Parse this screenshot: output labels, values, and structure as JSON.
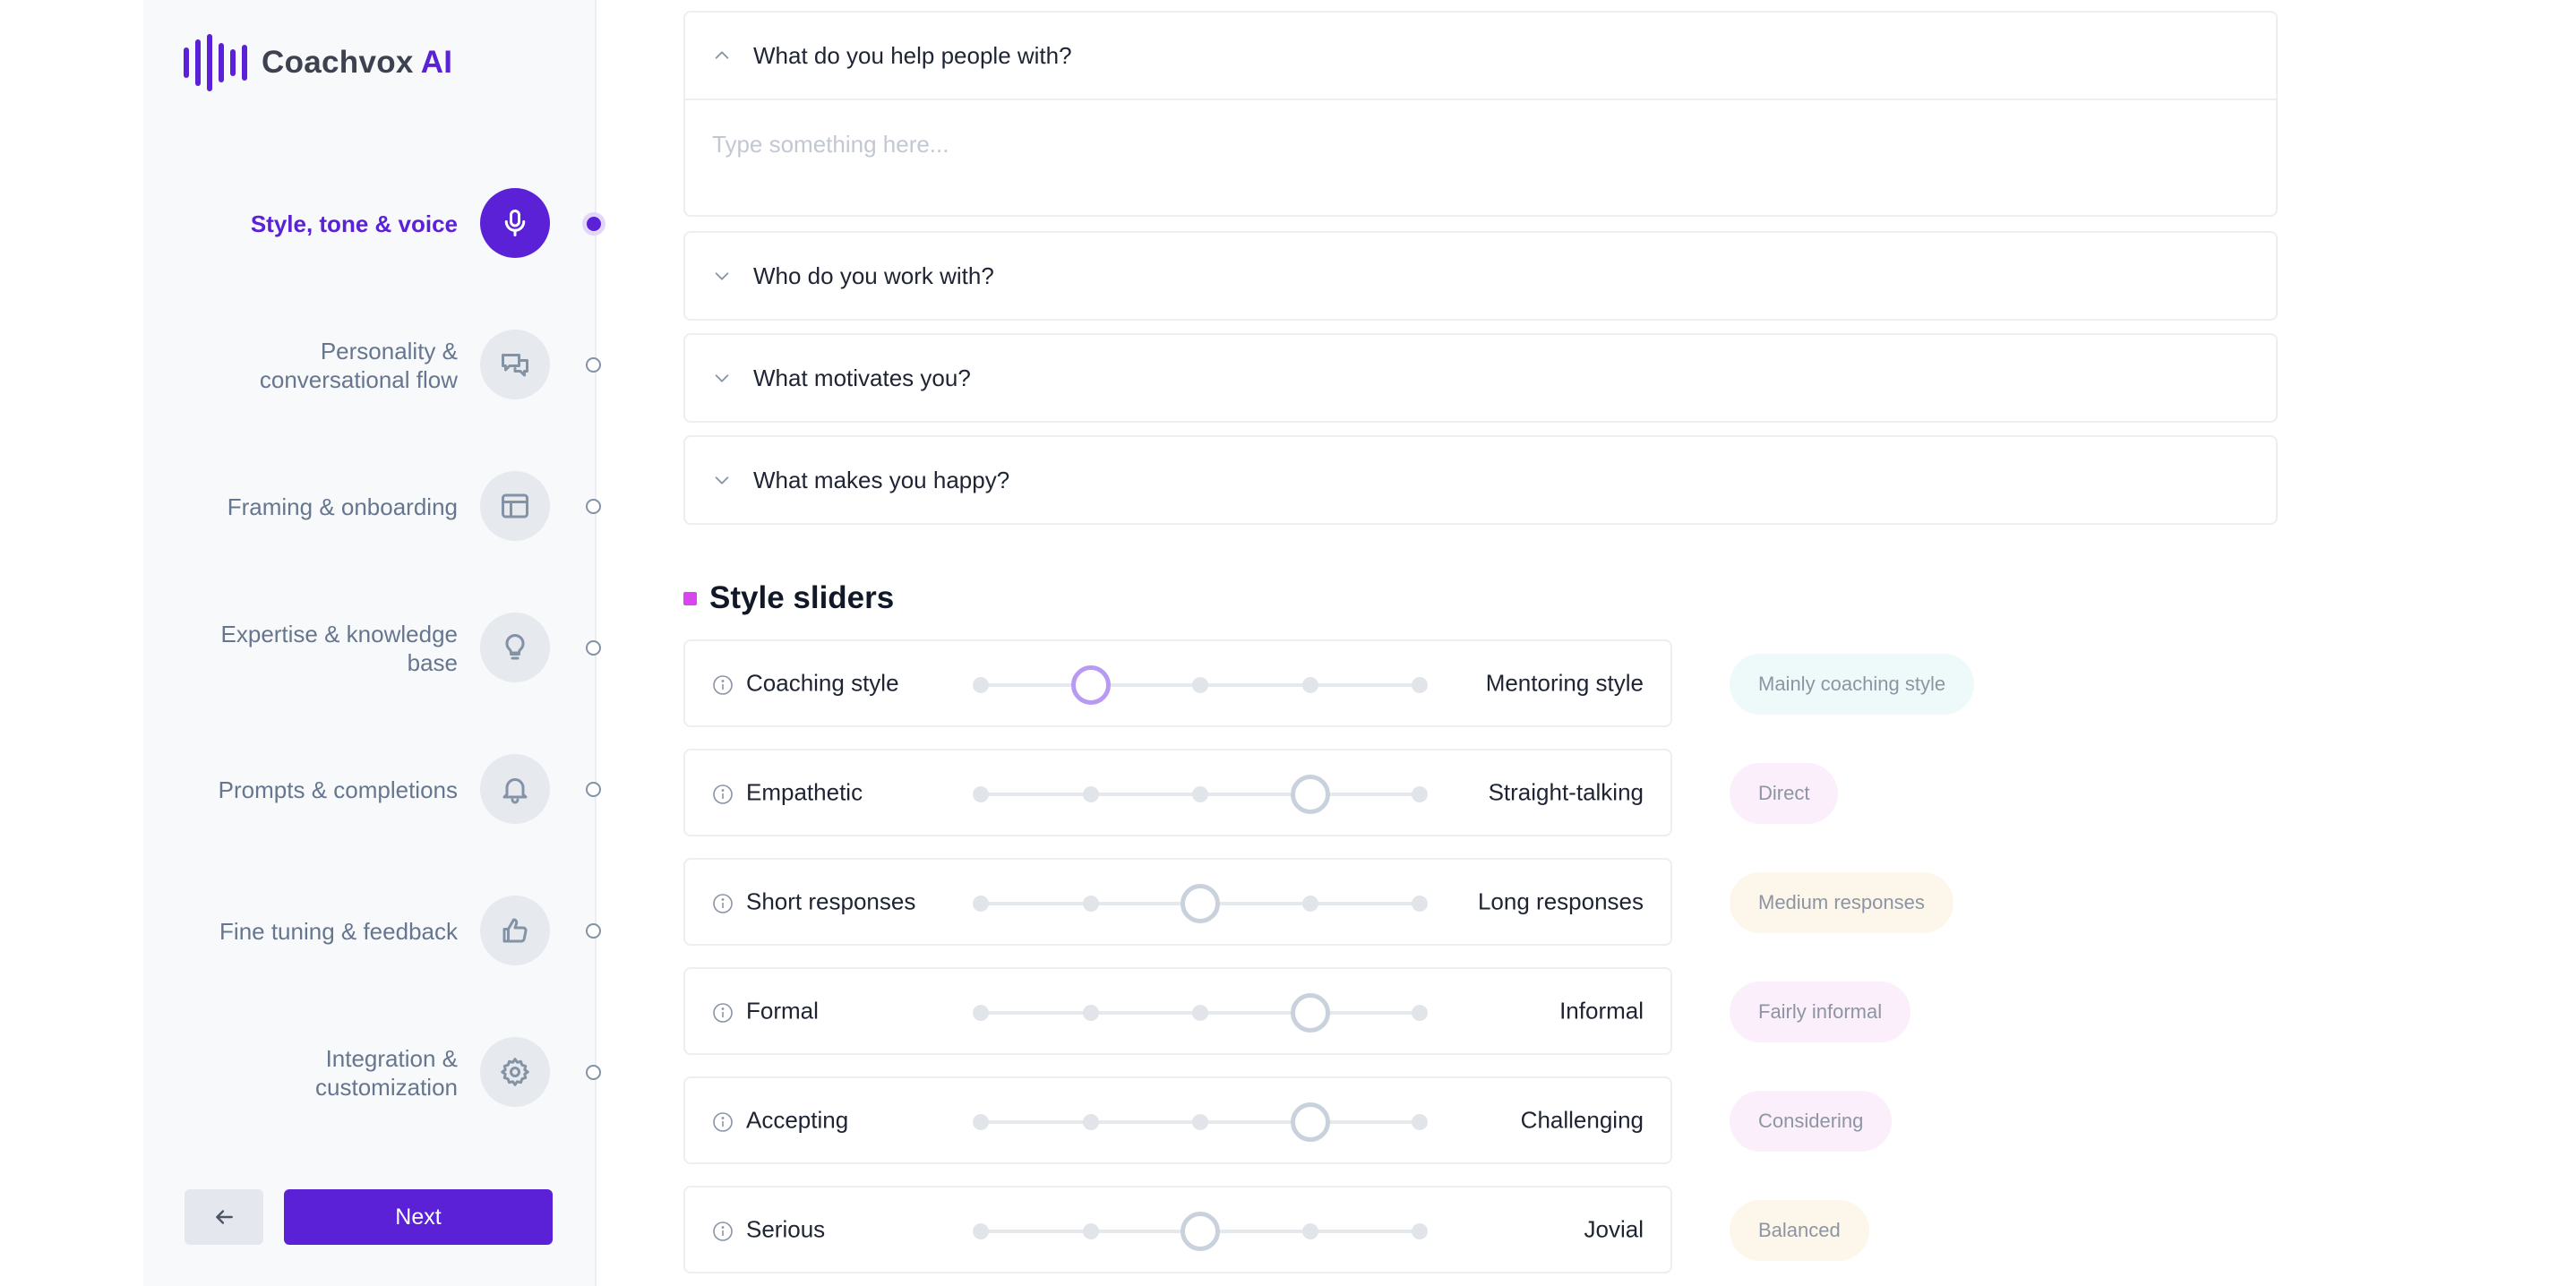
{
  "brand": {
    "name": "Coachvox",
    "suffix": "AI"
  },
  "nav": {
    "items": [
      {
        "label": "Style, tone & voice",
        "icon": "microphone-icon",
        "active": true
      },
      {
        "label": "Personality & conversational flow",
        "icon": "chat-bubbles-icon",
        "active": false
      },
      {
        "label": "Framing & onboarding",
        "icon": "layout-icon",
        "active": false
      },
      {
        "label": "Expertise & knowledge base",
        "icon": "lightbulb-icon",
        "active": false
      },
      {
        "label": "Prompts & completions",
        "icon": "bell-icon",
        "active": false
      },
      {
        "label": "Fine tuning & feedback",
        "icon": "thumbs-up-icon",
        "active": false
      },
      {
        "label": "Integration & customization",
        "icon": "gear-icon",
        "active": false
      }
    ],
    "back_icon": "arrow-left-icon",
    "next_label": "Next"
  },
  "questions": [
    {
      "text": "What do you help people with?",
      "expanded": true,
      "placeholder": "Type something here...",
      "value": ""
    },
    {
      "text": "Who do you work with?",
      "expanded": false
    },
    {
      "text": "What motivates you?",
      "expanded": false
    },
    {
      "text": "What makes you happy?",
      "expanded": false
    }
  ],
  "sliders_section": {
    "title": "Style sliders"
  },
  "sliders": [
    {
      "left": "Coaching style",
      "right": "Mentoring style",
      "position": 1,
      "steps": 5,
      "result": "Mainly coaching style",
      "pill_color": "#eefafa",
      "active": true
    },
    {
      "left": "Empathetic",
      "right": "Straight-talking",
      "position": 3,
      "steps": 5,
      "result": "Direct",
      "pill_color": "#fbeffb",
      "active": false
    },
    {
      "left": "Short responses",
      "right": "Long responses",
      "position": 2,
      "steps": 5,
      "result": "Medium responses",
      "pill_color": "#fdf6ea",
      "active": false
    },
    {
      "left": "Formal",
      "right": "Informal",
      "position": 3,
      "steps": 5,
      "result": "Fairly informal",
      "pill_color": "#fbeffb",
      "active": false
    },
    {
      "left": "Accepting",
      "right": "Challenging",
      "position": 3,
      "steps": 5,
      "result": "Considering",
      "pill_color": "#fbeffb",
      "active": false
    },
    {
      "left": "Serious",
      "right": "Jovial",
      "position": 2,
      "steps": 5,
      "result": "Balanced",
      "pill_color": "#fdf6ea",
      "active": false
    }
  ]
}
